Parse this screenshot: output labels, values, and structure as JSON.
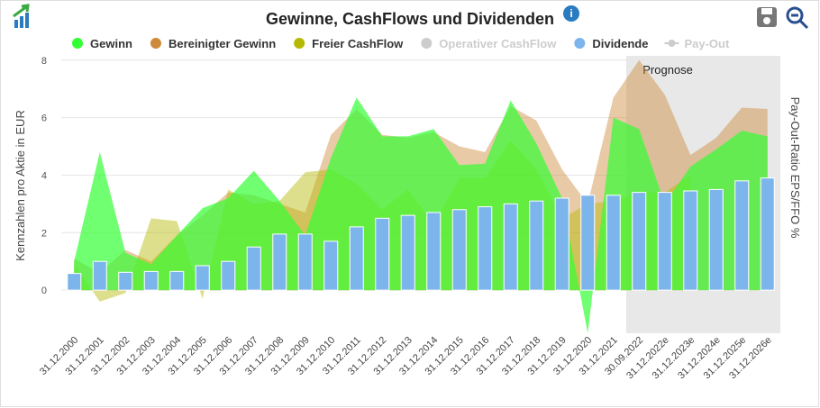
{
  "chart_data": {
    "type": "area-bar",
    "title": "Gewinne, CashFlows und Dividenden",
    "y_label": "Kennzahlen pro Aktie in EUR",
    "y2_label": "Pay-Out-Ratio EPS/FFO %",
    "annotation": "Prognose",
    "forecast_start": "30.09.2022",
    "categories": [
      "31.12.2000",
      "31.12.2001",
      "31.12.2002",
      "31.12.2003",
      "31.12.2004",
      "31.12.2005",
      "31.12.2006",
      "31.12.2007",
      "31.12.2008",
      "31.12.2009",
      "31.12.2010",
      "31.12.2011",
      "31.12.2012",
      "31.12.2013",
      "31.12.2014",
      "31.12.2015",
      "31.12.2016",
      "31.12.2017",
      "31.12.2018",
      "31.12.2019",
      "31.12.2020",
      "31.12.2021",
      "30.09.2022",
      "31.12.2022e",
      "31.12.2023e",
      "31.12.2024e",
      "31.12.2025e",
      "31.12.2026e"
    ],
    "ylim": [
      -1.5,
      8.15
    ],
    "yticks": [
      0,
      2,
      4,
      6,
      8
    ],
    "grid": true,
    "series": [
      {
        "name": "Gewinn",
        "color": "#33ff33",
        "kind": "area",
        "values": [
          1.0,
          4.8,
          1.3,
          0.9,
          1.9,
          2.85,
          3.2,
          4.15,
          3.1,
          1.9,
          4.6,
          6.7,
          5.35,
          5.35,
          5.6,
          4.35,
          4.4,
          6.6,
          5.1,
          3.2,
          -1.5,
          6.0,
          5.6,
          3.0,
          4.3,
          4.9,
          5.55,
          5.35
        ]
      },
      {
        "name": "Bereinigter Gewinn",
        "color": "#cd8a3a",
        "kind": "area",
        "values": [
          1.1,
          0.6,
          1.4,
          1.0,
          1.9,
          2.6,
          3.4,
          3.3,
          3.0,
          2.7,
          5.4,
          6.3,
          5.4,
          5.3,
          5.5,
          5.0,
          4.8,
          6.4,
          5.9,
          4.2,
          3.0,
          6.7,
          8.0,
          6.8,
          4.7,
          5.3,
          6.35,
          6.3
        ]
      },
      {
        "name": "Freier CashFlow",
        "color": "#b5b800",
        "kind": "area",
        "values": [
          0.9,
          -0.4,
          -0.1,
          2.5,
          2.4,
          -0.3,
          3.5,
          3.0,
          3.1,
          4.1,
          4.2,
          3.7,
          2.8,
          3.5,
          2.3,
          3.9,
          3.9,
          5.2,
          4.2,
          2.5,
          3.0,
          3.1,
          3.4,
          3.4,
          4.0,
          null,
          null,
          null
        ]
      },
      {
        "name": "Operativer CashFlow",
        "color": "#cccccc",
        "kind": "area",
        "visible": false,
        "values": [
          null,
          null,
          null,
          null,
          null,
          null,
          null,
          null,
          null,
          null,
          null,
          null,
          null,
          null,
          null,
          null,
          null,
          null,
          null,
          null,
          null,
          null,
          null,
          null,
          null,
          null,
          null,
          null
        ]
      },
      {
        "name": "Dividende",
        "color": "#7cb5ec",
        "kind": "bar",
        "values": [
          0.58,
          1.0,
          0.62,
          0.65,
          0.65,
          0.85,
          1.0,
          1.5,
          1.95,
          1.95,
          1.7,
          2.2,
          2.5,
          2.6,
          2.7,
          2.8,
          2.9,
          3.0,
          3.1,
          3.2,
          3.3,
          3.3,
          3.4,
          3.4,
          3.45,
          3.5,
          3.8,
          3.9
        ]
      },
      {
        "name": "Pay-Out",
        "color": "#cccccc",
        "kind": "line",
        "axis": "y2",
        "visible": false,
        "values": [
          null,
          null,
          null,
          null,
          null,
          null,
          null,
          null,
          null,
          null,
          null,
          null,
          null,
          null,
          null,
          null,
          null,
          null,
          null,
          null,
          null,
          null,
          null,
          null,
          null,
          null,
          null,
          null
        ]
      }
    ]
  }
}
